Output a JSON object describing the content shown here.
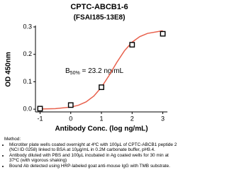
{
  "chart_data": {
    "type": "scatter",
    "title": "CPTC-ABCB1-6",
    "subtitle": "(FSAI185-13E8)",
    "x_label": "Antibody Conc. (log ng/mL)",
    "y_label": "OD 450nm",
    "x": [
      -1,
      0,
      1,
      2,
      3
    ],
    "series": [
      {
        "color": "#000000",
        "values": [
          0.002,
          0.015,
          0.08,
          0.235,
          0.275
        ]
      }
    ],
    "fit": {
      "color": "#e8604c",
      "x": [
        -1,
        -0.5,
        0,
        0.25,
        0.5,
        0.75,
        1,
        1.25,
        1.5,
        1.75,
        2,
        2.25,
        2.5,
        3
      ],
      "values": [
        0.0006,
        0.0021,
        0.0076,
        0.0144,
        0.0266,
        0.0476,
        0.0799,
        0.123,
        0.1706,
        0.213,
        0.2445,
        0.2646,
        0.2763,
        0.2862
      ]
    },
    "annotation": {
      "symbol": "B",
      "subscript": "50%",
      "text": " = 23.2 ng/mL"
    },
    "xlim": [
      -1.15,
      3.15
    ],
    "xticks": [
      -1,
      0,
      1,
      2,
      3
    ],
    "ylim": [
      -0.01,
      0.3
    ],
    "yticks": [
      {
        "value": 0,
        "label": "0.0"
      },
      0.1,
      0.2,
      0.3
    ]
  },
  "notes": {
    "heading": "Method:",
    "items": [
      "Microtiter plate wells coated overnight at 4ºC  with 100µL of CPTC-ABCB1 peptide 2 (NCI ID 0258) linked to BSA at 10µg/mL in 0.2M carbonate buffer, pH9.4.",
      "Antibody diluted with PBS and 100µL incubated in Ag coated wells for 30 min at 37ºC (with vigorous shaking)",
      "Bound Ab detected using HRP-labeled goat anti-mouse IgG with TMB substrate."
    ]
  }
}
